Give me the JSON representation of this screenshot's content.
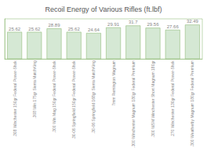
{
  "chart_data": {
    "type": "bar",
    "title": "Recoil Energy of Various Rifles (ft.lbf)",
    "categories": [
      ".308 Winchester 150gr Federal Power-Shok",
      ".308 Win 175gr Sierra MatchKing",
      ".300 Win Mag 150gr Federal Power-Shok",
      ".30-06 Springfield 150gr Federal Power-Shok",
      ".30-06 Springfield 168gr Sierra MatchKing",
      "7mm Remington Magnum",
      ".300 Winchester Magnum 180gr Federal Premium",
      ".300 WSM Winchester Short Magnum 180gr",
      ".270 Winchester 130gr Federal Power-Shok",
      ".300 Weatherby Magnum 180gr Federal Premium"
    ],
    "values": [
      25.62,
      25.62,
      28.89,
      25.62,
      24.64,
      29.91,
      31.7,
      29.56,
      27.66,
      32.49
    ],
    "color": "#d5e8d4",
    "ylim": [
      0,
      38
    ],
    "grid": false,
    "data_labels": true,
    "tick_labels": "x"
  }
}
